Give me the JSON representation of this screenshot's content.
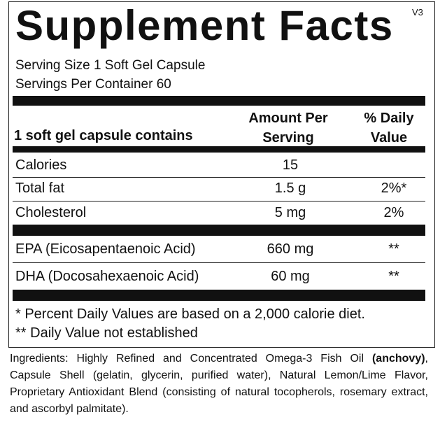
{
  "header": {
    "title": "Supplement Facts",
    "version": "V3"
  },
  "serving": {
    "size": "Serving Size 1 Soft Gel Capsule",
    "per_container": "Servings Per Container 60"
  },
  "table": {
    "columns": [
      "1 soft gel capsule contains",
      "Amount Per Serving",
      "% Daily Value"
    ],
    "rows": [
      {
        "name": "Calories",
        "amount": "15"
      },
      {
        "name": "Total fat",
        "amount": "1.5 g",
        "dv": "2%*"
      },
      {
        "name": "Cholesterol",
        "amount": "5 mg",
        "dv": "2%"
      },
      {
        "name": "EPA (Eicosapentaenoic Acid)",
        "amount": "660 mg",
        "dv": "**"
      },
      {
        "name": "DHA (Docosahexaenoic Acid)",
        "amount": "60 mg",
        "dv": "**"
      }
    ]
  },
  "footnotes": [
    "* Percent Daily Values are based on a 2,000 calorie diet.",
    "** Daily Value not established"
  ],
  "ingredients": {
    "before": "Ingredients: Highly Refined and Concentrated Omega-3 Fish Oil ",
    "bold": "(anchovy)",
    "after": ", Capsule Shell (gelatin, glycerin, purified water), Natural Lemon/Lime Flavor, Proprietary Antioxidant Blend (consisting of natural tocopherols, rosemary extract, and ascorbyl palmitate)."
  }
}
